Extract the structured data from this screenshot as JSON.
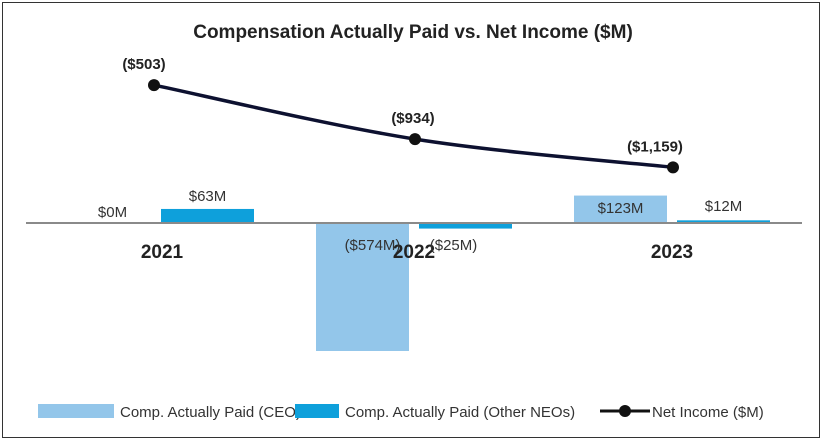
{
  "chart_data": {
    "type": "bar",
    "title": "Compensation Actually Paid vs. Net Income ($M)",
    "categories": [
      "2021",
      "2022",
      "2023"
    ],
    "series": [
      {
        "name": "Comp. Actually Paid (CEO)",
        "type": "bar",
        "color": "#93c6ea",
        "values": [
          0,
          -574,
          123
        ],
        "labels": [
          "$0M",
          "($574M)",
          "$123M"
        ]
      },
      {
        "name": "Comp. Actually Paid (Other NEOs)",
        "type": "bar",
        "color": "#0ea0db",
        "values": [
          63,
          -25,
          12
        ],
        "labels": [
          "$63M",
          "($25M)",
          "$12M"
        ]
      },
      {
        "name": "Net Income ($M)",
        "type": "line",
        "color": "#0d1130",
        "values": [
          -503,
          -934,
          -1159
        ],
        "labels": [
          "($503)",
          "($934)",
          "($1,159)"
        ]
      }
    ],
    "xlabel": "",
    "ylabel": "",
    "grid": false,
    "legend_position": "bottom"
  }
}
